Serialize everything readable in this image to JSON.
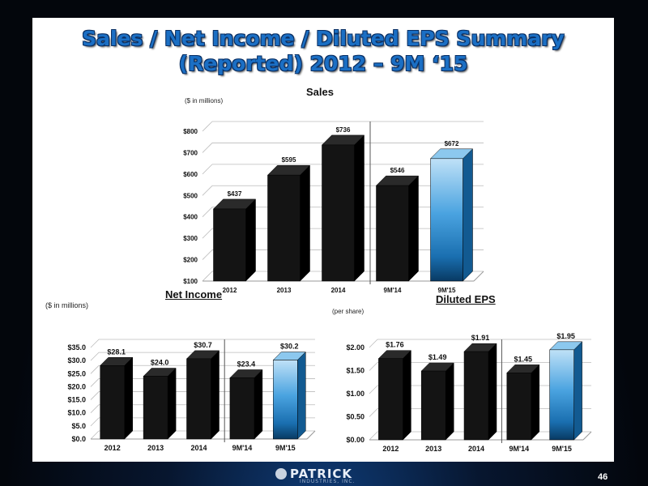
{
  "slide": {
    "title_line1": "Sales / Net Income / Diluted EPS Summary",
    "title_line2": "(Reported) 2012 – 9M ‘15",
    "logo_text": "PATRICK",
    "logo_sub": "INDUSTRIES, INC.",
    "page_number": "46"
  },
  "colors": {
    "bar": "#111111",
    "highlight": "#3a93d6",
    "title": "#1b6fc4",
    "background": "#05070d"
  },
  "chart_data": [
    {
      "type": "bar",
      "title": "Sales",
      "unit_label": "($ in millions)",
      "categories": [
        "2012",
        "2013",
        "2014",
        "9M'14",
        "9M'15"
      ],
      "values": [
        437,
        595,
        736,
        546,
        672
      ],
      "data_labels": [
        "$437",
        "$595",
        "$736",
        "$546",
        "$672"
      ],
      "ylim": [
        100,
        800
      ],
      "yticks": [
        100,
        200,
        300,
        400,
        500,
        600,
        700,
        800
      ],
      "ytick_labels": [
        "$100",
        "$200",
        "$300",
        "$400",
        "$500",
        "$600",
        "$700",
        "$800"
      ],
      "grid": true,
      "highlight_index": 4
    },
    {
      "type": "bar",
      "title": "Net Income",
      "unit_label": "($ in millions)",
      "categories": [
        "2012",
        "2013",
        "2014",
        "9M'14",
        "9M'15"
      ],
      "values": [
        28.1,
        24.0,
        30.7,
        23.4,
        30.2
      ],
      "data_labels": [
        "$28.1",
        "$24.0",
        "$30.7",
        "$23.4",
        "$30.2"
      ],
      "ylim": [
        0,
        35
      ],
      "yticks": [
        0,
        5,
        10,
        15,
        20,
        25,
        30,
        35
      ],
      "ytick_labels": [
        "$0.0",
        "$5.0",
        "$10.0",
        "$15.0",
        "$20.0",
        "$25.0",
        "$30.0",
        "$35.0"
      ],
      "grid": true,
      "highlight_index": 4
    },
    {
      "type": "bar",
      "title": "Diluted EPS",
      "unit_label": "(per share)",
      "categories": [
        "2012",
        "2013",
        "2014",
        "9M'14",
        "9M'15"
      ],
      "values": [
        1.76,
        1.49,
        1.91,
        1.45,
        1.95
      ],
      "data_labels": [
        "$1.76",
        "$1.49",
        "$1.91",
        "$1.45",
        "$1.95"
      ],
      "ylim": [
        0,
        2
      ],
      "yticks": [
        0,
        0.5,
        1,
        1.5,
        2
      ],
      "ytick_labels": [
        "$0.00",
        "$0.50",
        "$1.00",
        "$1.50",
        "$2.00"
      ],
      "grid": true,
      "highlight_index": 4
    }
  ]
}
